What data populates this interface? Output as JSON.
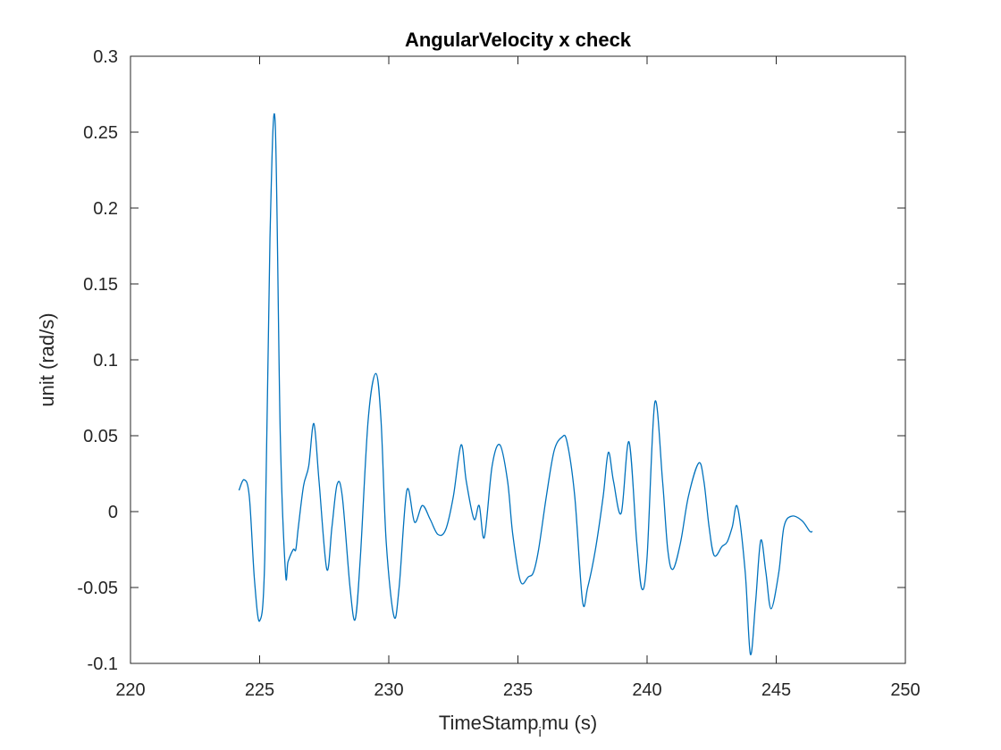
{
  "chart_data": {
    "type": "line",
    "title": "AngularVelocity x check",
    "xlabel_main": "TimeStamp",
    "xlabel_sub": "i",
    "xlabel_rest": "mu (s)",
    "ylabel": "unit (rad/s)",
    "xlim": [
      220,
      250
    ],
    "ylim": [
      -0.1,
      0.3
    ],
    "xticks": [
      220,
      225,
      230,
      235,
      240,
      245,
      250
    ],
    "xtick_labels": [
      "220",
      "225",
      "230",
      "235",
      "240",
      "245",
      "250"
    ],
    "yticks": [
      -0.1,
      -0.05,
      0,
      0.05,
      0.1,
      0.15,
      0.2,
      0.25,
      0.3
    ],
    "ytick_labels": [
      "-0.1",
      "-0.05",
      "0",
      "0.05",
      "0.1",
      "0.15",
      "0.2",
      "0.25",
      "0.3"
    ],
    "grid": false,
    "colors": {
      "line": "#0072BD",
      "axis": "#262626"
    },
    "series": [
      {
        "x": [
          224.2,
          224.4,
          224.6,
          224.8,
          225.0,
          225.2,
          225.4,
          225.6,
          225.8,
          226.0,
          226.1,
          226.3,
          226.4,
          226.5,
          226.7,
          226.9,
          227.1,
          227.3,
          227.6,
          227.8,
          228.0,
          228.2,
          228.5,
          228.7,
          228.9,
          229.2,
          229.5,
          229.7,
          229.9,
          230.2,
          230.4,
          230.7,
          231.0,
          231.3,
          231.6,
          231.9,
          232.2,
          232.5,
          232.8,
          233.0,
          233.3,
          233.5,
          233.7,
          234.0,
          234.3,
          234.6,
          234.8,
          235.1,
          235.4,
          235.6,
          235.8,
          236.1,
          236.4,
          236.7,
          236.9,
          237.2,
          237.5,
          237.7,
          238.0,
          238.3,
          238.5,
          238.7,
          239.0,
          239.3,
          239.6,
          239.8,
          240.0,
          240.3,
          240.6,
          240.8,
          241.0,
          241.3,
          241.6,
          242.0,
          242.2,
          242.4,
          242.6,
          242.9,
          243.1,
          243.3,
          243.5,
          243.8,
          244.0,
          244.2,
          244.4,
          244.6,
          244.8,
          245.1,
          245.3,
          245.6,
          246.0,
          246.3,
          246.4
        ],
        "y": [
          0.014,
          0.021,
          0.01,
          -0.045,
          -0.072,
          -0.03,
          0.18,
          0.257,
          0.05,
          -0.04,
          -0.033,
          -0.025,
          -0.025,
          -0.01,
          0.017,
          0.03,
          0.058,
          0.02,
          -0.038,
          -0.01,
          0.018,
          0.01,
          -0.05,
          -0.071,
          -0.03,
          0.06,
          0.091,
          0.06,
          -0.02,
          -0.069,
          -0.05,
          0.014,
          -0.007,
          0.004,
          -0.005,
          -0.015,
          -0.012,
          0.01,
          0.044,
          0.02,
          -0.005,
          0.004,
          -0.017,
          0.03,
          0.044,
          0.02,
          -0.015,
          -0.046,
          -0.043,
          -0.04,
          -0.025,
          0.01,
          0.04,
          0.049,
          0.046,
          0.01,
          -0.059,
          -0.05,
          -0.025,
          0.01,
          0.039,
          0.02,
          -0.001,
          0.046,
          -0.02,
          -0.051,
          -0.03,
          0.072,
          0.02,
          -0.025,
          -0.038,
          -0.02,
          0.01,
          0.032,
          0.02,
          -0.01,
          -0.029,
          -0.023,
          -0.02,
          -0.01,
          0.003,
          -0.04,
          -0.094,
          -0.06,
          -0.019,
          -0.04,
          -0.064,
          -0.04,
          -0.01,
          -0.003,
          -0.006,
          -0.013,
          -0.013
        ]
      }
    ]
  }
}
